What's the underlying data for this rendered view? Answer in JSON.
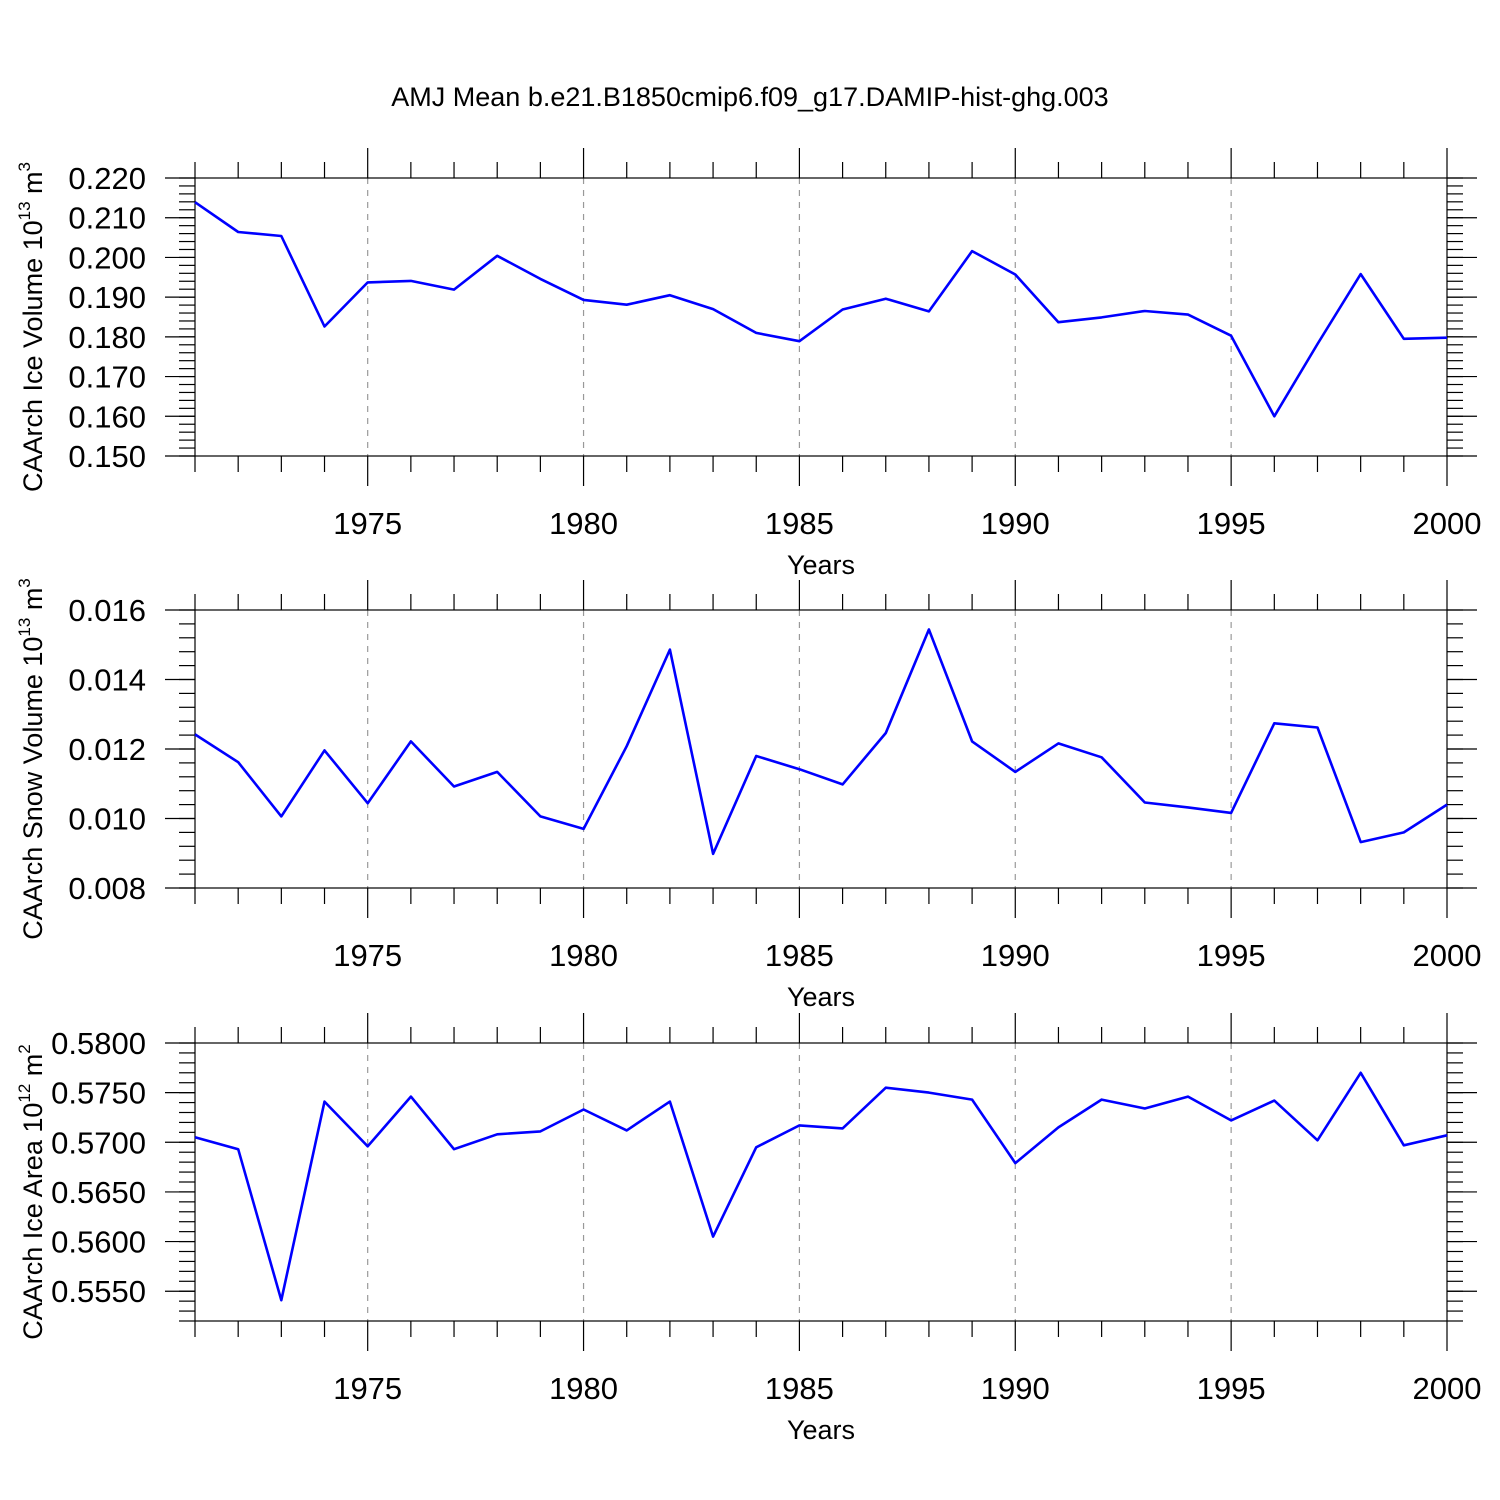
{
  "figure_title": "AMJ Mean b.e21.B1850cmip6.f09_g17.DAMIP-hist-ghg.003",
  "line_color": "#0000ff",
  "chart_data": [
    {
      "type": "line",
      "ylabel_main": "CAArch Ice Volume 10",
      "ylabel_exp": "13",
      "ylabel_unit": " m",
      "ylabel_unit_exp": "3",
      "xlabel": "Years",
      "xlim": [
        1971,
        2000
      ],
      "ylim": [
        0.15,
        0.22
      ],
      "x_ticks": [
        1975,
        1980,
        1985,
        1990,
        1995,
        2000
      ],
      "x_tick_labels": [
        "1975",
        "1980",
        "1985",
        "1990",
        "1995",
        "2000"
      ],
      "y_ticks": [
        0.15,
        0.16,
        0.17,
        0.18,
        0.19,
        0.2,
        0.21,
        0.22
      ],
      "y_tick_labels": [
        "0.150",
        "0.160",
        "0.170",
        "0.180",
        "0.190",
        "0.200",
        "0.210",
        "0.220"
      ],
      "y_minor_step": 0.002,
      "vertical_grid": true,
      "series": [
        {
          "name": "CAArch Ice Volume",
          "x": [
            1971,
            1972,
            1973,
            1974,
            1975,
            1976,
            1977,
            1978,
            1979,
            1980,
            1981,
            1982,
            1983,
            1984,
            1985,
            1986,
            1987,
            1988,
            1989,
            1990,
            1991,
            1992,
            1993,
            1994,
            1995,
            1996,
            1997,
            1998,
            1999,
            2000
          ],
          "values": [
            0.2139,
            0.2064,
            0.2054,
            0.1826,
            0.1937,
            0.1941,
            0.1919,
            0.2004,
            0.1946,
            0.1893,
            0.1881,
            0.1905,
            0.187,
            0.181,
            0.1789,
            0.1869,
            0.1896,
            0.1864,
            0.2016,
            0.1957,
            0.1837,
            0.1849,
            0.1865,
            0.1856,
            0.1803,
            0.16,
            0.1782,
            0.1958,
            0.1795,
            0.1798
          ]
        }
      ]
    },
    {
      "type": "line",
      "ylabel_main": "CAArch Snow Volume 10",
      "ylabel_exp": "13",
      "ylabel_unit": " m",
      "ylabel_unit_exp": "3",
      "xlabel": "Years",
      "xlim": [
        1971,
        2000
      ],
      "ylim": [
        0.008,
        0.016
      ],
      "x_ticks": [
        1975,
        1980,
        1985,
        1990,
        1995,
        2000
      ],
      "x_tick_labels": [
        "1975",
        "1980",
        "1985",
        "1990",
        "1995",
        "2000"
      ],
      "y_ticks": [
        0.008,
        0.01,
        0.012,
        0.014,
        0.016
      ],
      "y_tick_labels": [
        "0.008",
        "0.010",
        "0.012",
        "0.014",
        "0.016"
      ],
      "y_minor_step": 0.0004,
      "vertical_grid": true,
      "series": [
        {
          "name": "CAArch Snow Volume",
          "x": [
            1971,
            1972,
            1973,
            1974,
            1975,
            1976,
            1977,
            1978,
            1979,
            1980,
            1981,
            1982,
            1983,
            1984,
            1985,
            1986,
            1987,
            1988,
            1989,
            1990,
            1991,
            1992,
            1993,
            1994,
            1995,
            1996,
            1997,
            1998,
            1999,
            2000
          ],
          "values": [
            0.01242,
            0.01162,
            0.01006,
            0.01196,
            0.01044,
            0.01222,
            0.01092,
            0.01134,
            0.01006,
            0.0097,
            0.01208,
            0.01486,
            0.00898,
            0.0118,
            0.01142,
            0.01098,
            0.01246,
            0.01544,
            0.01222,
            0.01134,
            0.01216,
            0.01176,
            0.01046,
            0.01032,
            0.01016,
            0.01274,
            0.01262,
            0.00932,
            0.0096,
            0.0104
          ]
        }
      ]
    },
    {
      "type": "line",
      "ylabel_main": "CAArch Ice Area 10",
      "ylabel_exp": "12",
      "ylabel_unit": " m",
      "ylabel_unit_exp": "2",
      "xlabel": "Years",
      "xlim": [
        1971,
        2000
      ],
      "ylim": [
        0.552,
        0.58
      ],
      "x_ticks": [
        1975,
        1980,
        1985,
        1990,
        1995,
        2000
      ],
      "x_tick_labels": [
        "1975",
        "1980",
        "1985",
        "1990",
        "1995",
        "2000"
      ],
      "y_ticks": [
        0.555,
        0.56,
        0.565,
        0.57,
        0.575,
        0.58
      ],
      "y_tick_labels": [
        "0.5550",
        "0.5600",
        "0.5650",
        "0.5700",
        "0.5750",
        "0.5800"
      ],
      "y_minor_step": 0.001,
      "vertical_grid": true,
      "series": [
        {
          "name": "CAArch Ice Area",
          "x": [
            1971,
            1972,
            1973,
            1974,
            1975,
            1976,
            1977,
            1978,
            1979,
            1980,
            1981,
            1982,
            1983,
            1984,
            1985,
            1986,
            1987,
            1988,
            1989,
            1990,
            1991,
            1992,
            1993,
            1994,
            1995,
            1996,
            1997,
            1998,
            1999,
            2000
          ],
          "values": [
            0.5705,
            0.5693,
            0.5541,
            0.5741,
            0.5696,
            0.5746,
            0.5693,
            0.5708,
            0.5711,
            0.5733,
            0.5712,
            0.5741,
            0.5605,
            0.5695,
            0.5717,
            0.5714,
            0.5755,
            0.575,
            0.5743,
            0.5679,
            0.5715,
            0.5743,
            0.5734,
            0.5746,
            0.5722,
            0.5742,
            0.5702,
            0.577,
            0.5697,
            0.5707
          ]
        }
      ]
    }
  ]
}
